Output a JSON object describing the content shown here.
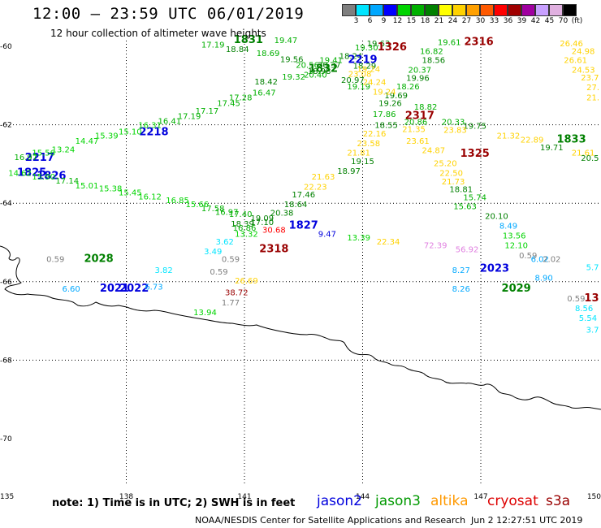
{
  "title": "12:00 – 23:59 UTC 06/01/2019",
  "subtitle": "12 hour collection of altimeter wave heights",
  "colorbar": {
    "unit_label": "(ft)",
    "levels": [
      "3",
      "6",
      "9",
      "12",
      "15",
      "18",
      "21",
      "24",
      "27",
      "30",
      "33",
      "36",
      "39",
      "42",
      "45",
      "70"
    ],
    "colors": [
      "#7f7f7f",
      "#00e5ff",
      "#00a8ff",
      "#0000ff",
      "#00d400",
      "#00b000",
      "#008000",
      "#ffff00",
      "#ffd200",
      "#ffa000",
      "#ff5a00",
      "#ff0000",
      "#a00000",
      "#a000a0",
      "#c8a0ff",
      "#e0b0e0",
      "#000000"
    ]
  },
  "axes": {
    "lon_labels": [
      "135",
      "138",
      "141",
      "144",
      "147",
      "150"
    ],
    "lat_labels": [
      "-60",
      "-62",
      "-64",
      "-66",
      "-68",
      "-70"
    ]
  },
  "footnote": "note:  1) Time is in UTC;  2) SWH is in feet",
  "legend": [
    {
      "name": "jason2",
      "color": "#0000dd"
    },
    {
      "name": "jason3",
      "color": "#009900"
    },
    {
      "name": "altika",
      "color": "#ff9900"
    },
    {
      "name": "cryosat",
      "color": "#dd0000"
    },
    {
      "name": "s3a",
      "color": "#990000"
    }
  ],
  "credit": "NOAA/NESDIS Center for Satellite Applications and Research",
  "credit_date": "Jun  2 12:27:51 UTC 2019",
  "labels": [
    {
      "t": "19.47",
      "lon": 142.05,
      "lat": -59.92,
      "c": "#00b000"
    },
    {
      "t": "1831",
      "lon": 141.1,
      "lat": -59.92,
      "c": "#008000",
      "b": 1
    },
    {
      "t": "17.19",
      "lon": 140.2,
      "lat": -60.03,
      "c": "#00b000"
    },
    {
      "t": "18.84",
      "lon": 140.82,
      "lat": -60.15,
      "c": "#008000"
    },
    {
      "t": "18.69",
      "lon": 141.6,
      "lat": -60.25,
      "c": "#00b000"
    },
    {
      "t": "19.56",
      "lon": 142.2,
      "lat": -60.4,
      "c": "#008000"
    },
    {
      "t": "20.56",
      "lon": 142.6,
      "lat": -60.55,
      "c": "#00b000"
    },
    {
      "t": "18.98",
      "lon": 142.9,
      "lat": -60.7,
      "c": "#008000"
    },
    {
      "t": "19.32",
      "lon": 142.25,
      "lat": -60.85,
      "c": "#00b000"
    },
    {
      "t": "18.42",
      "lon": 141.55,
      "lat": -60.97,
      "c": "#008000"
    },
    {
      "t": "1832",
      "lon": 143.0,
      "lat": -60.65,
      "c": "#008000",
      "b": 1
    },
    {
      "t": "20.40",
      "lon": 142.8,
      "lat": -60.8,
      "c": "#00b000"
    },
    {
      "t": "20.37",
      "lon": 143.15,
      "lat": -60.55,
      "c": "#008000"
    },
    {
      "t": "19.41",
      "lon": 143.2,
      "lat": -60.42,
      "c": "#00b000"
    },
    {
      "t": "18.24",
      "lon": 143.7,
      "lat": -60.32,
      "c": "#008000"
    },
    {
      "t": "19.30",
      "lon": 144.1,
      "lat": -60.1,
      "c": "#00b000"
    },
    {
      "t": "19.63",
      "lon": 144.4,
      "lat": -60.0,
      "c": "#008000"
    },
    {
      "t": "1326",
      "lon": 144.75,
      "lat": -60.1,
      "c": "#990000",
      "b": 1
    },
    {
      "t": "2219",
      "lon": 144.0,
      "lat": -60.42,
      "c": "#0000dd",
      "b": 1
    },
    {
      "t": "20.97",
      "lon": 143.75,
      "lat": -60.93,
      "c": "#008000"
    },
    {
      "t": "19.19",
      "lon": 143.9,
      "lat": -61.1,
      "c": "#00b000"
    },
    {
      "t": "18.29",
      "lon": 144.05,
      "lat": -60.57,
      "c": "#008000"
    },
    {
      "t": "19.24",
      "lon": 144.15,
      "lat": -60.65,
      "c": "#ffd200"
    },
    {
      "t": "23.08",
      "lon": 143.93,
      "lat": -60.78,
      "c": "#ffd200"
    },
    {
      "t": "24.24",
      "lon": 144.3,
      "lat": -60.98,
      "c": "#ffd200"
    },
    {
      "t": "19.61",
      "lon": 146.2,
      "lat": -59.97,
      "c": "#00b000"
    },
    {
      "t": "2316",
      "lon": 146.95,
      "lat": -59.97,
      "c": "#990000",
      "b": 1
    },
    {
      "t": "16.82",
      "lon": 145.75,
      "lat": -60.2,
      "c": "#00b000"
    },
    {
      "t": "18.56",
      "lon": 145.8,
      "lat": -60.42,
      "c": "#008000"
    },
    {
      "t": "20.37",
      "lon": 145.45,
      "lat": -60.67,
      "c": "#00b000"
    },
    {
      "t": "19.96",
      "lon": 145.4,
      "lat": -60.88,
      "c": "#008000"
    },
    {
      "t": "18.26",
      "lon": 145.15,
      "lat": -61.1,
      "c": "#00b000"
    },
    {
      "t": "19.69",
      "lon": 144.85,
      "lat": -61.32,
      "c": "#008000"
    },
    {
      "t": "19.24",
      "lon": 144.55,
      "lat": -61.23,
      "c": "#ffd200"
    },
    {
      "t": "19.26",
      "lon": 144.7,
      "lat": -61.52,
      "c": "#008000"
    },
    {
      "t": "18.82",
      "lon": 145.6,
      "lat": -61.62,
      "c": "#00b000"
    },
    {
      "t": "17.86",
      "lon": 144.55,
      "lat": -61.8,
      "c": "#00b000"
    },
    {
      "t": "2317",
      "lon": 145.45,
      "lat": -61.85,
      "c": "#990000",
      "b": 1
    },
    {
      "t": "20.86",
      "lon": 145.35,
      "lat": -62.0,
      "c": "#00b000"
    },
    {
      "t": "18.55",
      "lon": 144.6,
      "lat": -62.08,
      "c": "#008000"
    },
    {
      "t": "20.33",
      "lon": 146.3,
      "lat": -62.0,
      "c": "#00b000"
    },
    {
      "t": "19.75",
      "lon": 146.85,
      "lat": -62.1,
      "c": "#008000"
    },
    {
      "t": "21.35",
      "lon": 145.3,
      "lat": -62.18,
      "c": "#ffd200"
    },
    {
      "t": "22.16",
      "lon": 144.3,
      "lat": -62.3,
      "c": "#ffd200"
    },
    {
      "t": "23.58",
      "lon": 144.15,
      "lat": -62.55,
      "c": "#ffd200"
    },
    {
      "t": "21.81",
      "lon": 143.9,
      "lat": -62.78,
      "c": "#ffd200"
    },
    {
      "t": "23.61",
      "lon": 145.4,
      "lat": -62.48,
      "c": "#ffd200"
    },
    {
      "t": "24.87",
      "lon": 145.8,
      "lat": -62.72,
      "c": "#ffd200"
    },
    {
      "t": "1325",
      "lon": 146.85,
      "lat": -62.82,
      "c": "#990000",
      "b": 1
    },
    {
      "t": "23.83",
      "lon": 146.35,
      "lat": -62.2,
      "c": "#ffd200"
    },
    {
      "t": "21.32",
      "lon": 147.7,
      "lat": -62.35,
      "c": "#ffd200"
    },
    {
      "t": "22.89",
      "lon": 148.3,
      "lat": -62.45,
      "c": "#ffd200"
    },
    {
      "t": "1833",
      "lon": 149.3,
      "lat": -62.45,
      "c": "#008000",
      "b": 1
    },
    {
      "t": "19.71",
      "lon": 148.8,
      "lat": -62.65,
      "c": "#008000"
    },
    {
      "t": "21.61",
      "lon": 149.6,
      "lat": -62.78,
      "c": "#ffd200"
    },
    {
      "t": "20.5",
      "lon": 150.0,
      "lat": -62.92,
      "c": "#008000"
    },
    {
      "t": "19.15",
      "lon": 144.0,
      "lat": -63.0,
      "c": "#008000"
    },
    {
      "t": "18.97",
      "lon": 143.65,
      "lat": -63.25,
      "c": "#008000"
    },
    {
      "t": "25.20",
      "lon": 146.1,
      "lat": -63.05,
      "c": "#ffd200"
    },
    {
      "t": "22.50",
      "lon": 146.25,
      "lat": -63.3,
      "c": "#ffd200"
    },
    {
      "t": "21.73",
      "lon": 146.3,
      "lat": -63.52,
      "c": "#ffd200"
    },
    {
      "t": "21.63",
      "lon": 143.0,
      "lat": -63.4,
      "c": "#ffd200"
    },
    {
      "t": "22.23",
      "lon": 142.8,
      "lat": -63.65,
      "c": "#ffd200"
    },
    {
      "t": "17.46",
      "lon": 142.5,
      "lat": -63.85,
      "c": "#008000"
    },
    {
      "t": "18.81",
      "lon": 146.5,
      "lat": -63.72,
      "c": "#008000"
    },
    {
      "t": "15.74",
      "lon": 146.85,
      "lat": -63.92,
      "c": "#00b000"
    },
    {
      "t": "18.64",
      "lon": 142.3,
      "lat": -64.1,
      "c": "#008000"
    },
    {
      "t": "20.38",
      "lon": 141.95,
      "lat": -64.32,
      "c": "#008000"
    },
    {
      "t": "15.63",
      "lon": 146.6,
      "lat": -64.15,
      "c": "#00b000"
    },
    {
      "t": "20.10",
      "lon": 147.4,
      "lat": -64.4,
      "c": "#008000"
    },
    {
      "t": "18.39",
      "lon": 140.95,
      "lat": -64.6,
      "c": "#008000"
    },
    {
      "t": "17.10",
      "lon": 141.45,
      "lat": -64.55,
      "c": "#008000"
    },
    {
      "t": "16.86",
      "lon": 141.0,
      "lat": -64.7,
      "c": "#00b000"
    },
    {
      "t": "30.68",
      "lon": 141.75,
      "lat": -64.75,
      "c": "#ff0000"
    },
    {
      "t": "1827",
      "lon": 142.5,
      "lat": -64.65,
      "c": "#0000dd",
      "b": 1
    },
    {
      "t": "9.47",
      "lon": 143.1,
      "lat": -64.85,
      "c": "#0000dd"
    },
    {
      "t": "8.49",
      "lon": 147.7,
      "lat": -64.65,
      "c": "#00a8ff"
    },
    {
      "t": "13.56",
      "lon": 147.85,
      "lat": -64.9,
      "c": "#00d400"
    },
    {
      "t": "12.10",
      "lon": 147.9,
      "lat": -65.15,
      "c": "#00d400"
    },
    {
      "t": "13.32",
      "lon": 141.05,
      "lat": -64.85,
      "c": "#00d400"
    },
    {
      "t": "3.62",
      "lon": 140.5,
      "lat": -65.05,
      "c": "#00e5ff"
    },
    {
      "t": "13.39",
      "lon": 143.9,
      "lat": -64.95,
      "c": "#00d400"
    },
    {
      "t": "22.34",
      "lon": 144.65,
      "lat": -65.05,
      "c": "#ffd200"
    },
    {
      "t": "72.39",
      "lon": 145.85,
      "lat": -65.15,
      "c": "#e080e0"
    },
    {
      "t": "56.92",
      "lon": 146.65,
      "lat": -65.25,
      "c": "#e080e0"
    },
    {
      "t": "2318",
      "lon": 141.75,
      "lat": -65.25,
      "c": "#990000",
      "b": 1
    },
    {
      "t": "3.49",
      "lon": 140.2,
      "lat": -65.3,
      "c": "#00e5ff"
    },
    {
      "t": "0.59",
      "lon": 140.65,
      "lat": -65.5,
      "c": "#7f7f7f"
    },
    {
      "t": "0.59",
      "lon": 136.2,
      "lat": -65.5,
      "c": "#7f7f7f"
    },
    {
      "t": "2028",
      "lon": 137.3,
      "lat": -65.5,
      "c": "#008000",
      "b": 1
    },
    {
      "t": "0.59",
      "lon": 148.2,
      "lat": -65.4,
      "c": "#7f7f7f"
    },
    {
      "t": "6.02",
      "lon": 148.5,
      "lat": -65.5,
      "c": "#00a8ff"
    },
    {
      "t": "2.02",
      "lon": 148.8,
      "lat": -65.5,
      "c": "#7f7f7f"
    },
    {
      "t": "8.27",
      "lon": 146.5,
      "lat": -65.78,
      "c": "#00a8ff"
    },
    {
      "t": "2023",
      "lon": 147.35,
      "lat": -65.75,
      "c": "#0000dd",
      "b": 1
    },
    {
      "t": "3.82",
      "lon": 138.95,
      "lat": -65.78,
      "c": "#00e5ff"
    },
    {
      "t": "0.59",
      "lon": 140.35,
      "lat": -65.82,
      "c": "#7f7f7f"
    },
    {
      "t": "8.90",
      "lon": 148.6,
      "lat": -65.97,
      "c": "#00a8ff"
    },
    {
      "t": "5.7",
      "lon": 150.0,
      "lat": -65.7,
      "c": "#00e5ff"
    },
    {
      "t": "6.60",
      "lon": 136.6,
      "lat": -66.25,
      "c": "#00a8ff"
    },
    {
      "t": "2021",
      "lon": 137.7,
      "lat": -66.25,
      "c": "#0000dd",
      "b": 1
    },
    {
      "t": "2022",
      "lon": 138.2,
      "lat": -66.25,
      "c": "#0000dd",
      "b": 1
    },
    {
      "t": "6.73",
      "lon": 138.7,
      "lat": -66.2,
      "c": "#00a8ff"
    },
    {
      "t": "26.69",
      "lon": 141.05,
      "lat": -66.05,
      "c": "#ffd200"
    },
    {
      "t": "8.26",
      "lon": 146.5,
      "lat": -66.25,
      "c": "#00a8ff"
    },
    {
      "t": "2029",
      "lon": 147.9,
      "lat": -66.25,
      "c": "#008000",
      "b": 1
    },
    {
      "t": "38.72",
      "lon": 140.8,
      "lat": -66.35,
      "c": "#990000"
    },
    {
      "t": "1.77",
      "lon": 140.65,
      "lat": -66.6,
      "c": "#7f7f7f"
    },
    {
      "t": "0.59",
      "lon": 149.65,
      "lat": -66.5,
      "c": "#7f7f7f"
    },
    {
      "t": "13",
      "lon": 150.0,
      "lat": -66.5,
      "c": "#990000",
      "b": 1
    },
    {
      "t": "8.56",
      "lon": 149.85,
      "lat": -66.75,
      "c": "#00e5ff"
    },
    {
      "t": "5.54",
      "lon": 149.95,
      "lat": -67.0,
      "c": "#00e5ff"
    },
    {
      "t": "3.7",
      "lon": 150.0,
      "lat": -67.3,
      "c": "#00e5ff"
    },
    {
      "t": "13.94",
      "lon": 140.0,
      "lat": -66.85,
      "c": "#00d400"
    },
    {
      "t": "1825",
      "lon": 135.6,
      "lat": -63.3,
      "c": "#0000dd",
      "b": 1
    },
    {
      "t": "1826",
      "lon": 136.1,
      "lat": -63.38,
      "c": "#0000dd",
      "b": 1
    },
    {
      "t": "2217",
      "lon": 135.8,
      "lat": -62.92,
      "c": "#0000dd",
      "b": 1
    },
    {
      "t": "2218",
      "lon": 138.7,
      "lat": -62.27,
      "c": "#0000dd",
      "b": 1
    },
    {
      "t": "16.97",
      "lon": 135.45,
      "lat": -62.9,
      "c": "#00b000"
    },
    {
      "t": "15.56",
      "lon": 135.9,
      "lat": -62.78,
      "c": "#00d400"
    },
    {
      "t": "13.24",
      "lon": 136.4,
      "lat": -62.7,
      "c": "#00d400"
    },
    {
      "t": "14.47",
      "lon": 137.0,
      "lat": -62.48,
      "c": "#00d400"
    },
    {
      "t": "15.39",
      "lon": 137.5,
      "lat": -62.35,
      "c": "#00d400"
    },
    {
      "t": "15.10",
      "lon": 138.1,
      "lat": -62.25,
      "c": "#00d400"
    },
    {
      "t": "16.31",
      "lon": 138.6,
      "lat": -62.08,
      "c": "#00d400"
    },
    {
      "t": "16.41",
      "lon": 139.1,
      "lat": -61.98,
      "c": "#00b000"
    },
    {
      "t": "17.19",
      "lon": 139.6,
      "lat": -61.85,
      "c": "#00b000"
    },
    {
      "t": "17.17",
      "lon": 140.05,
      "lat": -61.72,
      "c": "#00b000"
    },
    {
      "t": "17.45",
      "lon": 140.6,
      "lat": -61.52,
      "c": "#00b000"
    },
    {
      "t": "17.28",
      "lon": 140.9,
      "lat": -61.38,
      "c": "#00b000"
    },
    {
      "t": "16.47",
      "lon": 141.5,
      "lat": -61.25,
      "c": "#00b000"
    },
    {
      "t": "14.62",
      "lon": 135.3,
      "lat": -63.3,
      "c": "#00d400"
    },
    {
      "t": "15.90",
      "lon": 135.9,
      "lat": -63.4,
      "c": "#00d400"
    },
    {
      "t": "17.14",
      "lon": 136.5,
      "lat": -63.5,
      "c": "#00b000"
    },
    {
      "t": "15.01",
      "lon": 137.0,
      "lat": -63.62,
      "c": "#00d400"
    },
    {
      "t": "15.38",
      "lon": 137.6,
      "lat": -63.7,
      "c": "#00d400"
    },
    {
      "t": "15.45",
      "lon": 138.1,
      "lat": -63.8,
      "c": "#00d400"
    },
    {
      "t": "16.12",
      "lon": 138.6,
      "lat": -63.9,
      "c": "#00d400"
    },
    {
      "t": "16.85",
      "lon": 139.3,
      "lat": -64.0,
      "c": "#00d400"
    },
    {
      "t": "15.66",
      "lon": 139.8,
      "lat": -64.1,
      "c": "#00d400"
    },
    {
      "t": "17.58",
      "lon": 140.2,
      "lat": -64.2,
      "c": "#00b000"
    },
    {
      "t": "16.97",
      "lon": 140.55,
      "lat": -64.3,
      "c": "#00b000"
    },
    {
      "t": "17.40",
      "lon": 140.9,
      "lat": -64.35,
      "c": "#00b000"
    },
    {
      "t": "19.09",
      "lon": 141.45,
      "lat": -64.45,
      "c": "#008000"
    },
    {
      "t": "26.46",
      "lon": 149.3,
      "lat": -60.0,
      "c": "#ffd200"
    },
    {
      "t": "24.98",
      "lon": 149.6,
      "lat": -60.2,
      "c": "#ffd200"
    },
    {
      "t": "26.61",
      "lon": 149.7,
      "lat": -60.42,
      "c": "#ffd200"
    },
    {
      "t": "24.53",
      "lon": 149.9,
      "lat": -60.67,
      "c": "#ffd200"
    },
    {
      "t": "23.7",
      "lon": 150.0,
      "lat": -60.87,
      "c": "#ffd200"
    },
    {
      "t": "27.",
      "lon": 150.05,
      "lat": -61.12,
      "c": "#ffd200"
    },
    {
      "t": "21.",
      "lon": 150.05,
      "lat": -61.38,
      "c": "#ffd200"
    }
  ]
}
